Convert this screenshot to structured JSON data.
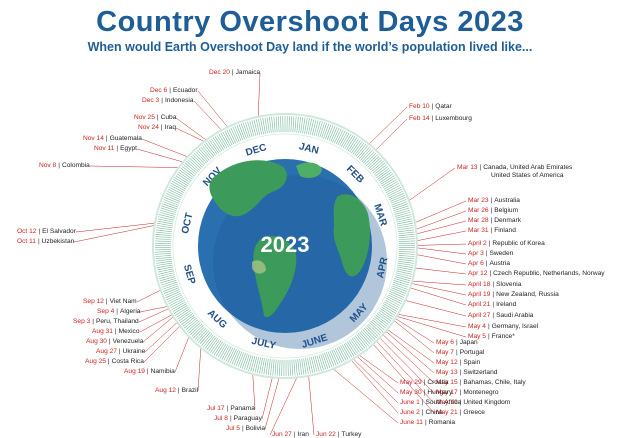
{
  "title": "Country Overshoot Days 2023",
  "subtitle": "When would Earth Overshoot Day land if the world’s population lived like...",
  "center_label": "2023",
  "colors": {
    "title": "#1f5d96",
    "date": "#cc2222",
    "ocean": "#2a6fb0",
    "land": "#3c9a5a",
    "ring_tick": "#4aa37c",
    "month": "#1f4f84"
  },
  "months": [
    "JAN",
    "FEB",
    "MAR",
    "APR",
    "MAY",
    "JUNE",
    "JULY",
    "AUG",
    "SEP",
    "OCT",
    "NOV",
    "DEC"
  ],
  "entries": [
    {
      "date": "Feb 10",
      "countries": "Qatar",
      "day": 41
    },
    {
      "date": "Feb 14",
      "countries": "Luxembourg",
      "day": 45
    },
    {
      "date": "Mar 13",
      "countries": "Canada, United Arab Emirates",
      "countries2": "United States of America",
      "day": 72
    },
    {
      "date": "Mar 23",
      "countries": "Australia",
      "day": 82
    },
    {
      "date": "Mar 26",
      "countries": "Belgium",
      "day": 85
    },
    {
      "date": "Mar 28",
      "countries": "Denmark",
      "day": 87
    },
    {
      "date": "Mar 31",
      "countries": "Finland",
      "day": 90
    },
    {
      "date": "April 2",
      "countries": "Republic of Korea",
      "day": 92
    },
    {
      "date": "Apr 3",
      "countries": "Sweden",
      "day": 93
    },
    {
      "date": "Apr 6",
      "countries": "Austria",
      "day": 96
    },
    {
      "date": "Apr 12",
      "countries": "Czech Republic, Netherlands, Norway",
      "day": 102
    },
    {
      "date": "April 18",
      "countries": "Slovenia",
      "day": 108
    },
    {
      "date": "April 19",
      "countries": "New Zealand, Russia",
      "day": 109
    },
    {
      "date": "April 21",
      "countries": "Ireland",
      "day": 111
    },
    {
      "date": "April 27",
      "countries": "Saudi Arabia",
      "day": 117
    },
    {
      "date": "May 4",
      "countries": "Germany, Israel",
      "day": 124
    },
    {
      "date": "May 5",
      "countries": "France*",
      "day": 125
    },
    {
      "date": "May 6",
      "countries": "Japan",
      "day": 126
    },
    {
      "date": "May 7",
      "countries": "Portugal",
      "day": 127
    },
    {
      "date": "May 12",
      "countries": "Spain",
      "day": 132
    },
    {
      "date": "May 13",
      "countries": "Switzerland",
      "day": 133
    },
    {
      "date": "May 15",
      "countries": "Bahamas, Chile, Italy",
      "day": 135
    },
    {
      "date": "May 17",
      "countries": "Montenegro",
      "day": 137
    },
    {
      "date": "May 19",
      "countries": "United Kingdom",
      "day": 139
    },
    {
      "date": "May 21",
      "countries": "Greece",
      "day": 141
    },
    {
      "date": "May 29",
      "countries": "Croatia",
      "day": 149
    },
    {
      "date": "May 30",
      "countries": "Hungary",
      "day": 150
    },
    {
      "date": "June 1",
      "countries": "South Africa",
      "day": 152
    },
    {
      "date": "June 2",
      "countries": "China",
      "day": 153
    },
    {
      "date": "June 11",
      "countries": "Romania",
      "day": 162
    },
    {
      "date": "Jun 22",
      "countries": "Turkey",
      "day": 173
    },
    {
      "date": "Jun 27",
      "countries": "Iran",
      "day": 178
    },
    {
      "date": "Jul 5",
      "countries": "Bolivia",
      "day": 186
    },
    {
      "date": "Jul 8",
      "countries": "Paraguay",
      "day": 189
    },
    {
      "date": "Jul 17",
      "countries": "Panama",
      "day": 198
    },
    {
      "date": "Aug 12",
      "countries": "Brazil",
      "day": 224
    },
    {
      "date": "Aug 19",
      "countries": "Namibia",
      "day": 231
    },
    {
      "date": "Aug 25",
      "countries": "Costa Rica",
      "day": 237
    },
    {
      "date": "Aug 27",
      "countries": "Ukraine",
      "day": 239
    },
    {
      "date": "Aug 30",
      "countries": "Venezuela",
      "day": 242
    },
    {
      "date": "Aug 31",
      "countries": "Mexico",
      "day": 243
    },
    {
      "date": "Sep 3",
      "countries": "Peru, Thailand",
      "day": 246
    },
    {
      "date": "Sep 4",
      "countries": "Algeria",
      "day": 247
    },
    {
      "date": "Sep 12",
      "countries": "Viet Nam",
      "day": 255
    },
    {
      "date": "Oct 11",
      "countries": "Uzbekistan",
      "day": 284
    },
    {
      "date": "Oct 12",
      "countries": "El Salvador",
      "day": 285
    },
    {
      "date": "Nov 8",
      "countries": "Colombia",
      "day": 312
    },
    {
      "date": "Nov 11",
      "countries": "Egypt",
      "day": 315
    },
    {
      "date": "Nov 14",
      "countries": "Guatemala",
      "day": 318
    },
    {
      "date": "Nov 24",
      "countries": "Iraq",
      "day": 328
    },
    {
      "date": "Nov 25",
      "countries": "Cuba",
      "day": 329
    },
    {
      "date": "Dec 3",
      "countries": "Indonesia",
      "day": 337
    },
    {
      "date": "Dec 6",
      "countries": "Ecuador",
      "day": 340
    },
    {
      "date": "Dec 20",
      "countries": "Jamaica",
      "day": 354
    }
  ]
}
